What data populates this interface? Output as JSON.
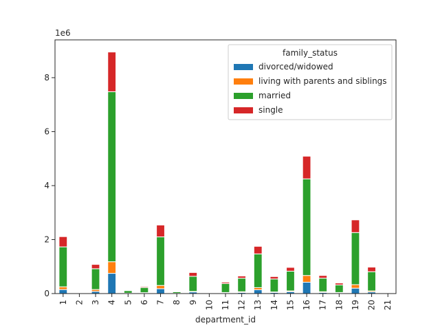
{
  "chart_data": {
    "type": "bar",
    "stacked": true,
    "scale_label": "1e6",
    "xlabel": "department_id",
    "ylabel": "",
    "ylim": [
      0,
      9400000
    ],
    "yticks": [
      0,
      2,
      4,
      6,
      8
    ],
    "grid": false,
    "legend": {
      "title": "family_status",
      "placement": "top-right"
    },
    "categories": [
      "1",
      "2",
      "3",
      "4",
      "5",
      "6",
      "7",
      "8",
      "9",
      "10",
      "11",
      "12",
      "13",
      "14",
      "15",
      "16",
      "17",
      "18",
      "19",
      "20",
      "21"
    ],
    "series": [
      {
        "name": "divorced/widowed",
        "color": "#1f77b4",
        "values": [
          150000,
          0,
          80000,
          750000,
          10000,
          20000,
          180000,
          5000,
          60000,
          0,
          25000,
          40000,
          140000,
          40000,
          70000,
          420000,
          40000,
          25000,
          200000,
          60000,
          0
        ]
      },
      {
        "name": "living with parents and siblings",
        "color": "#ff7f0e",
        "values": [
          100000,
          0,
          70000,
          430000,
          5000,
          15000,
          120000,
          5000,
          20000,
          0,
          15000,
          30000,
          80000,
          20000,
          30000,
          250000,
          30000,
          15000,
          130000,
          40000,
          0
        ]
      },
      {
        "name": "married",
        "color": "#2ca02c",
        "values": [
          1480000,
          0,
          770000,
          6300000,
          95000,
          190000,
          1800000,
          55000,
          560000,
          0,
          330000,
          500000,
          1250000,
          480000,
          730000,
          3580000,
          500000,
          280000,
          1930000,
          710000,
          20000
        ]
      },
      {
        "name": "single",
        "color": "#d62728",
        "values": [
          380000,
          0,
          160000,
          1470000,
          10000,
          35000,
          440000,
          5000,
          140000,
          0,
          50000,
          80000,
          280000,
          90000,
          140000,
          840000,
          100000,
          70000,
          470000,
          170000,
          0
        ]
      }
    ]
  }
}
